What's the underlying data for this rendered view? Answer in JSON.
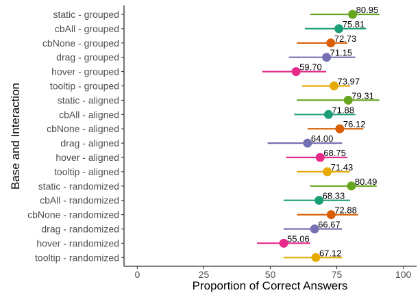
{
  "chart_data": {
    "type": "scatter",
    "subtype": "dot-with-error-interval",
    "title": "",
    "xlabel": "Proportion of Correct Answers",
    "ylabel": "Base and Interaction",
    "xlim": [
      -5,
      105
    ],
    "xticks": [
      0,
      25,
      50,
      75,
      100
    ],
    "grid": false,
    "legend": "none",
    "colors": {
      "static": "#66a61e",
      "cbAll": "#1b9e77",
      "cbNone": "#d95f02",
      "drag": "#7570b3",
      "hover": "#e7298a",
      "tooltip": "#e6ab02"
    },
    "points": [
      {
        "label": "static - grouped",
        "interaction": "static",
        "value": 80.95,
        "value_label": "80.95",
        "low": 65,
        "high": 91
      },
      {
        "label": "cbAll - grouped",
        "interaction": "cbAll",
        "value": 75.81,
        "value_label": "75.81",
        "low": 63,
        "high": 86
      },
      {
        "label": "cbNone - grouped",
        "interaction": "cbNone",
        "value": 72.73,
        "value_label": "72.73",
        "low": 60,
        "high": 79
      },
      {
        "label": "drag - grouped",
        "interaction": "drag",
        "value": 71.15,
        "value_label": "71.15",
        "low": 57,
        "high": 82
      },
      {
        "label": "hover - grouped",
        "interaction": "hover",
        "value": 59.7,
        "value_label": "59.70",
        "low": 47,
        "high": 71
      },
      {
        "label": "tooltip - grouped",
        "interaction": "tooltip",
        "value": 73.97,
        "value_label": "73.97",
        "low": 62,
        "high": 80
      },
      {
        "label": "static - aligned",
        "interaction": "static",
        "value": 79.31,
        "value_label": "79.31",
        "low": 60,
        "high": 91
      },
      {
        "label": "cbAll - aligned",
        "interaction": "cbAll",
        "value": 71.88,
        "value_label": "71.88",
        "low": 59,
        "high": 82
      },
      {
        "label": "cbNone - aligned",
        "interaction": "cbNone",
        "value": 76.12,
        "value_label": "76.12",
        "low": 64,
        "high": 85
      },
      {
        "label": "drag - aligned",
        "interaction": "drag",
        "value": 64.0,
        "value_label": "64.00",
        "low": 49,
        "high": 77
      },
      {
        "label": "hover - aligned",
        "interaction": "hover",
        "value": 68.75,
        "value_label": "68.75",
        "low": 56,
        "high": 79
      },
      {
        "label": "tooltip - aligned",
        "interaction": "tooltip",
        "value": 71.43,
        "value_label": "71.43",
        "low": 60,
        "high": 80
      },
      {
        "label": "static - randomized",
        "interaction": "static",
        "value": 80.49,
        "value_label": "80.49",
        "low": 65,
        "high": 90
      },
      {
        "label": "cbAll - randomized",
        "interaction": "cbAll",
        "value": 68.33,
        "value_label": "68.33",
        "low": 55,
        "high": 80
      },
      {
        "label": "cbNone - randomized",
        "interaction": "cbNone",
        "value": 72.88,
        "value_label": "72.88",
        "low": 60,
        "high": 83
      },
      {
        "label": "drag - randomized",
        "interaction": "drag",
        "value": 66.67,
        "value_label": "66.67",
        "low": 55,
        "high": 77
      },
      {
        "label": "hover - randomized",
        "interaction": "hover",
        "value": 55.06,
        "value_label": "55.06",
        "low": 45,
        "high": 65
      },
      {
        "label": "tooltip - randomized",
        "interaction": "tooltip",
        "value": 67.12,
        "value_label": "67.12",
        "low": 55,
        "high": 77
      }
    ]
  }
}
